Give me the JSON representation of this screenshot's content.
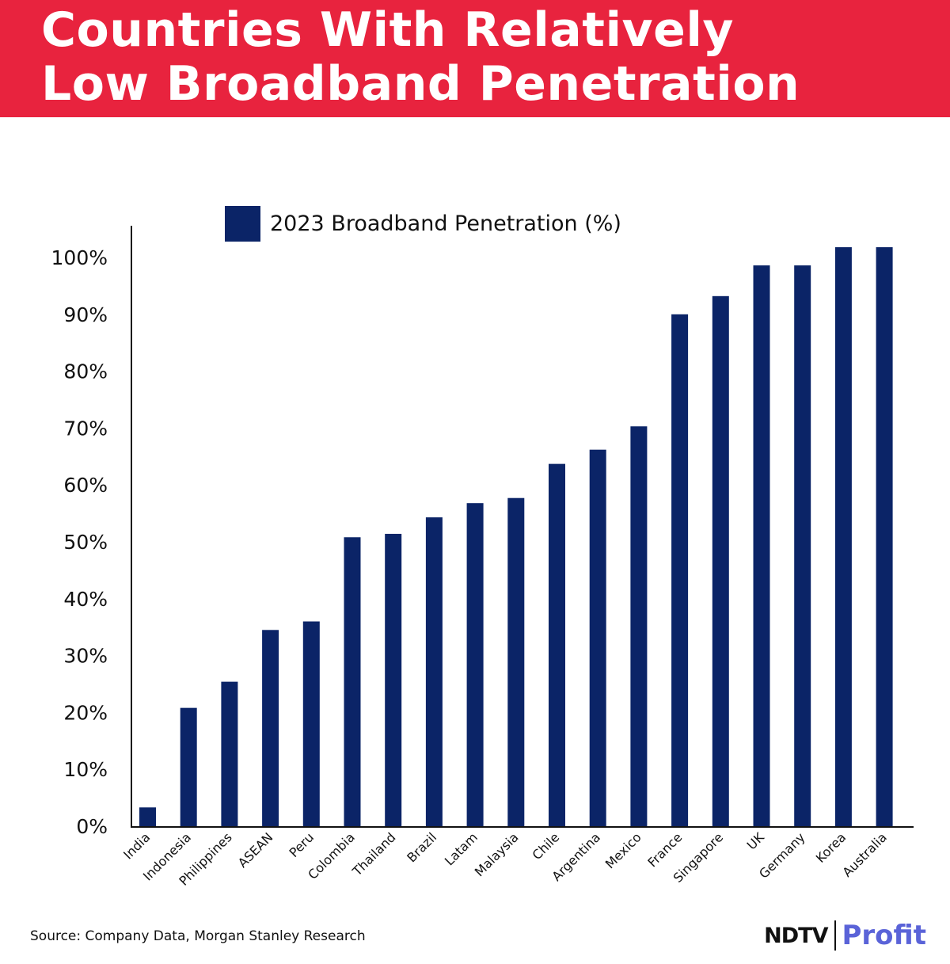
{
  "header": {
    "title_line1": "Countries With Relatively",
    "title_line2": "Low Broadband Penetration",
    "color": "#e8233e"
  },
  "chart_data": {
    "type": "bar",
    "categories": [
      "India",
      "Indonesia",
      "Philippines",
      "ASEAN",
      "Peru",
      "Colombia",
      "Thailand",
      "Brazil",
      "Latam",
      "Malaysia",
      "Chile",
      "Argentina",
      "Mexico",
      "France",
      "Singapore",
      "UK",
      "Germany",
      "Korea",
      "Australia"
    ],
    "series": [
      {
        "name": "2023 Broadband Penetration (%)",
        "values": [
          3.3,
          20.8,
          25.4,
          34.5,
          36.0,
          50.8,
          51.4,
          54.3,
          56.8,
          57.7,
          63.7,
          66.2,
          70.3,
          90.0,
          93.2,
          98.6,
          98.6,
          101.8,
          101.8
        ],
        "color": "#0b2467"
      }
    ],
    "yticks": [
      "0%",
      "10%",
      "20%",
      "30%",
      "40%",
      "50%",
      "60%",
      "70%",
      "80%",
      "90%",
      "100%"
    ],
    "ylim": [
      0,
      110
    ],
    "grid": false,
    "legend": "top-left"
  },
  "footer": {
    "source": "Source: Company Data, Morgan Stanley Research",
    "brand_ndtv": "NDTV",
    "brand_profit": "Profit",
    "brand_profit_color": "#5a63d8"
  }
}
